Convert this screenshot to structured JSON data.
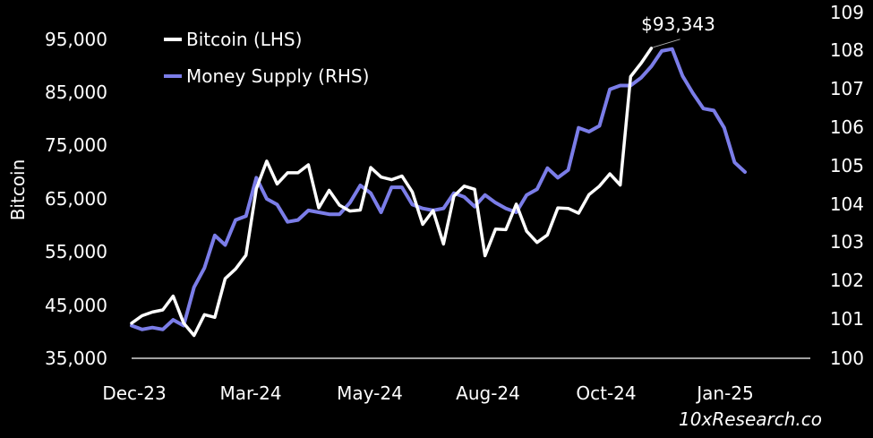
{
  "chart_data": {
    "type": "line",
    "ylabel": "Bitcoin",
    "x_tick_labels": [
      "Dec-23",
      "Mar-24",
      "May-24",
      "Aug-24",
      "Oct-24",
      "Jan-25"
    ],
    "y_left_ticks": [
      "95,000",
      "85,000",
      "75,000",
      "65,000",
      "55,000",
      "45,000",
      "35,000"
    ],
    "y_right_ticks": [
      "109",
      "108",
      "107",
      "106",
      "105",
      "104",
      "103",
      "102",
      "101",
      "100"
    ],
    "ylim_left": [
      35000,
      98000
    ],
    "ylim_right": [
      100,
      109
    ],
    "legend": {
      "placement": "top-left"
    },
    "grid": false,
    "series": [
      {
        "name": "Bitcoin (LHS)",
        "axis": "left",
        "color": "#ffffff",
        "values": [
          41600,
          43000,
          43700,
          44100,
          46700,
          41600,
          39300,
          43200,
          42700,
          50000,
          51800,
          54400,
          66900,
          72100,
          67800,
          69900,
          69900,
          71400,
          63300,
          66600,
          63800,
          62700,
          62900,
          70900,
          69100,
          68600,
          69300,
          66300,
          60200,
          62800,
          56500,
          65500,
          67400,
          66800,
          54300,
          59300,
          59200,
          64000,
          58900,
          56800,
          58200,
          63300,
          63200,
          62300,
          65800,
          67400,
          69700,
          67600,
          88000,
          90500,
          93343
        ],
        "annotation": "$93,343"
      },
      {
        "name": "Money Supply (RHS)",
        "axis": "right",
        "color": "#7b7de8",
        "values": [
          100.85,
          100.75,
          100.8,
          100.75,
          101,
          100.85,
          101.85,
          102.35,
          103.2,
          102.95,
          103.6,
          103.7,
          104.7,
          104.15,
          104.0,
          103.55,
          103.6,
          103.85,
          103.8,
          103.75,
          103.75,
          104.05,
          104.5,
          104.3,
          103.8,
          104.45,
          104.45,
          104.0,
          103.9,
          103.85,
          103.9,
          104.3,
          104.2,
          103.95,
          104.25,
          104.05,
          103.9,
          103.8,
          104.25,
          104.4,
          104.95,
          104.7,
          104.9,
          106.0,
          105.9,
          106.05,
          107.0,
          107.1,
          107.1,
          107.3,
          107.6,
          108.0,
          108.05,
          107.35,
          106.9,
          106.5,
          106.45,
          106.0,
          105.1,
          104.85
        ]
      }
    ]
  },
  "watermark": "10xResearch.co"
}
